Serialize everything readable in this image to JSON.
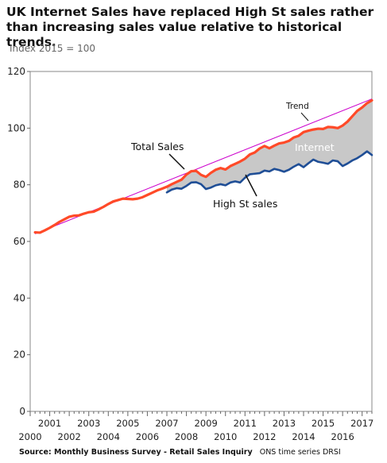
{
  "header": {
    "title_line1": "UK Internet Sales have replaced High St sales rather",
    "title_line2": "than increasing sales value relative to historical trends.",
    "subtitle": "Index 2015 = 100"
  },
  "footer": {
    "source_bold": "Source: Monthly Business Survey - Retail Sales Inquiry",
    "source_rest": "ONS time series DRSI"
  },
  "colors": {
    "total_sales": "#ff4a28",
    "high_st_sales": "#1f4e96",
    "trend": "#cc00cc",
    "internet_fill": "#c8c8c8"
  },
  "chart_data": {
    "type": "line",
    "title": "UK Internet Sales have replaced High St sales rather than increasing sales value relative to historical trends.",
    "ylabel": "Index 2015 = 100",
    "ylim": [
      0,
      120
    ],
    "yticks": [
      0,
      20,
      40,
      60,
      80,
      100,
      120
    ],
    "xlim": [
      2000,
      2017.5
    ],
    "xticks_upper": [
      "2001",
      "2003",
      "2005",
      "2007",
      "2009",
      "2011",
      "2013",
      "2015",
      "2017"
    ],
    "xticks_lower": [
      "2000",
      "2002",
      "2004",
      "2006",
      "2008",
      "2010",
      "2012",
      "2014",
      "2016"
    ],
    "grid": false,
    "legend": "none",
    "annotations": [
      "Total Sales",
      "High St sales",
      "Trend",
      "Internet"
    ],
    "series": [
      {
        "name": "Total Sales",
        "x": [
          2000.25,
          2000.5,
          2000.75,
          2001.0,
          2001.25,
          2001.5,
          2001.75,
          2002.0,
          2002.25,
          2002.5,
          2002.75,
          2003.0,
          2003.25,
          2003.5,
          2003.75,
          2004.0,
          2004.25,
          2004.5,
          2004.75,
          2005.0,
          2005.25,
          2005.5,
          2005.75,
          2006.0,
          2006.25,
          2006.5,
          2006.75,
          2007.0,
          2007.25,
          2007.5,
          2007.75,
          2008.0,
          2008.25,
          2008.5,
          2008.75,
          2009.0,
          2009.25,
          2009.5,
          2009.75,
          2010.0,
          2010.25,
          2010.5,
          2010.75,
          2011.0,
          2011.25,
          2011.5,
          2011.75,
          2012.0,
          2012.25,
          2012.5,
          2012.75,
          2013.0,
          2013.25,
          2013.5,
          2013.75,
          2014.0,
          2014.25,
          2014.5,
          2014.75,
          2015.0,
          2015.25,
          2015.5,
          2015.75,
          2016.0,
          2016.25,
          2016.5,
          2016.75,
          2017.0,
          2017.25,
          2017.5
        ],
        "values": [
          63.2,
          63.1,
          63.9,
          64.8,
          65.8,
          66.9,
          67.8,
          68.7,
          69.1,
          69.2,
          69.8,
          70.3,
          70.5,
          71.3,
          72.2,
          73.2,
          74.1,
          74.6,
          75.1,
          75.0,
          74.9,
          75.1,
          75.6,
          76.4,
          77.2,
          78.0,
          78.6,
          79.3,
          80.2,
          81.0,
          81.8,
          83.6,
          84.8,
          84.9,
          83.5,
          82.8,
          84.2,
          85.3,
          85.9,
          85.4,
          86.6,
          87.4,
          88.2,
          89.2,
          90.7,
          91.4,
          92.8,
          93.7,
          92.9,
          93.8,
          94.6,
          94.9,
          95.5,
          96.7,
          97.3,
          98.6,
          99.1,
          99.5,
          99.8,
          99.7,
          100.4,
          100.3,
          100.0,
          100.9,
          102.3,
          104.2,
          106.1,
          107.3,
          108.8,
          109.8
        ]
      },
      {
        "name": "High St sales",
        "x": [
          2007.0,
          2007.25,
          2007.5,
          2007.75,
          2008.0,
          2008.25,
          2008.5,
          2008.75,
          2009.0,
          2009.25,
          2009.5,
          2009.75,
          2010.0,
          2010.25,
          2010.5,
          2010.75,
          2011.0,
          2011.25,
          2011.5,
          2011.75,
          2012.0,
          2012.25,
          2012.5,
          2012.75,
          2013.0,
          2013.25,
          2013.5,
          2013.75,
          2014.0,
          2014.25,
          2014.5,
          2014.75,
          2015.0,
          2015.25,
          2015.5,
          2015.75,
          2016.0,
          2016.25,
          2016.5,
          2016.75,
          2017.0,
          2017.25,
          2017.5
        ],
        "values": [
          77.3,
          78.3,
          78.8,
          78.6,
          79.6,
          80.8,
          80.9,
          80.2,
          78.5,
          79.0,
          79.8,
          80.2,
          79.8,
          80.8,
          81.2,
          80.8,
          82.5,
          83.7,
          83.9,
          84.1,
          85.0,
          84.7,
          85.6,
          85.2,
          84.6,
          85.3,
          86.4,
          87.3,
          86.2,
          87.6,
          88.9,
          88.1,
          87.8,
          87.4,
          88.6,
          88.3,
          86.6,
          87.5,
          88.6,
          89.4,
          90.5,
          91.8,
          90.5
        ]
      },
      {
        "name": "Trend",
        "x": [
          2000.25,
          2017.5
        ],
        "values": [
          62.7,
          110.3
        ]
      }
    ]
  }
}
